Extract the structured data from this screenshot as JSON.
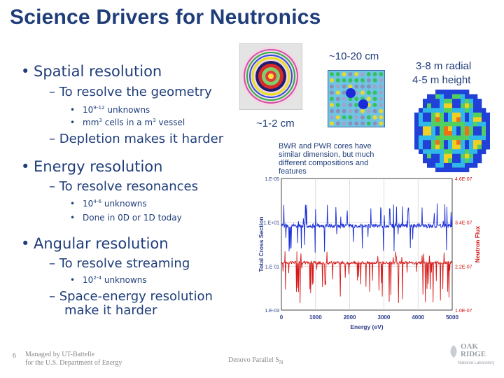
{
  "slide": {
    "title": "Science Drivers for Neutronics",
    "page_number": "6"
  },
  "bullets": {
    "spatial": "Spatial resolution",
    "spatial_sub": "To resolve the geometry",
    "spatial_d1_base": "10",
    "spatial_d1_exp": "9-12",
    "spatial_d1_rest": " unknowns",
    "spatial_d2_a": "mm",
    "spatial_d2_exp1": "3",
    "spatial_d2_b": " cells in a m",
    "spatial_d2_exp2": "3",
    "spatial_d2_c": " vessel",
    "depletion": "Depletion makes it harder",
    "energy": "Energy resolution",
    "energy_sub": "To resolve resonances",
    "energy_d1_base": "10",
    "energy_d1_exp": "4-6",
    "energy_d1_rest": " unknowns",
    "energy_d2": "Done in 0D or 1D today",
    "angular": "Angular resolution",
    "angular_sub": "To resolve streaming",
    "angular_d1_base": "10",
    "angular_d1_exp": "2-4",
    "angular_d1_rest": " unknowns",
    "space_energy_1": "Space-energy resolution",
    "space_energy_2": "make it harder"
  },
  "captions": {
    "scale_10_20": "~10-20 cm",
    "scale_1_2": "~1-2 cm",
    "radial": "3-8 m radial",
    "height": "4-5 m height",
    "bwr_1": "BWR and PWR cores have",
    "bwr_2": "similar dimension, but much",
    "bwr_3": "different compositions and",
    "bwr_4": "features"
  },
  "footer": {
    "managed_1": "Managed by UT-Battelle",
    "managed_2": "for the U.S. Department of Energy",
    "center": "Denovo Parallel S",
    "center_sub": "N",
    "logo_1": "OAK",
    "logo_2": "RIDGE",
    "logo_3": "National Laboratory"
  },
  "chart_data": {
    "type": "line",
    "title": "",
    "xlabel": "Energy (eV)",
    "ylabel_left": "Total Cross Section",
    "ylabel_right": "Neutron Flux",
    "x_ticks": [
      "0",
      "1000",
      "2000",
      "3000",
      "4000",
      "5000"
    ],
    "xlim": [
      0,
      5000
    ],
    "y_ticks_left": [
      "1.E-05",
      "1.E+01",
      "1.E 01",
      "1.E-03"
    ],
    "y_ticks_right": [
      "4.6E-07",
      "3.4E-07",
      "2.2E-07",
      "1.0E-07"
    ],
    "series": [
      {
        "name": "Total Cross Section",
        "color": "#1a2fd6",
        "axis": "left"
      },
      {
        "name": "Neutron Flux",
        "color": "#d61a1a",
        "axis": "right"
      }
    ],
    "grid": true
  },
  "colors": {
    "title": "#1f3d7a",
    "text": "#1f3d7a",
    "axis_label": "#2d3c8c",
    "right_axis_label": "#cc1010"
  }
}
